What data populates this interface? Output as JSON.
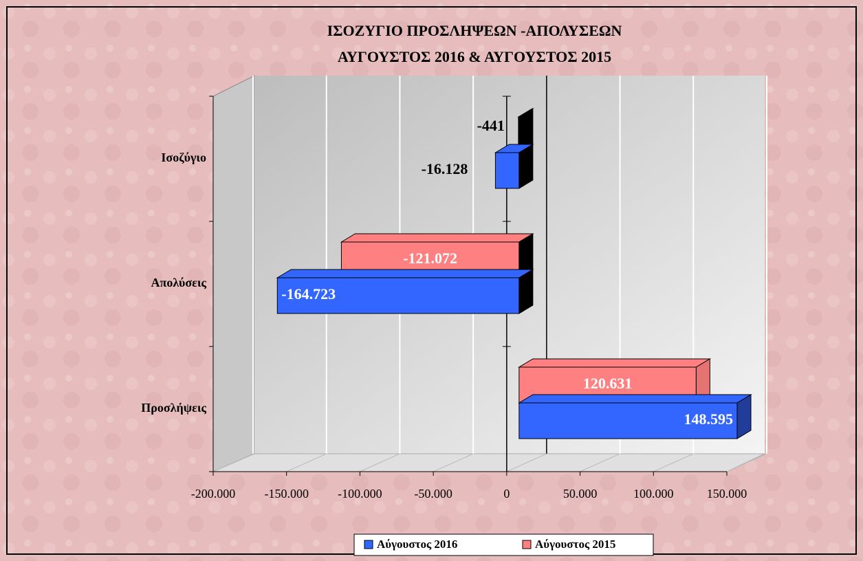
{
  "chart_data": {
    "type": "bar3d_horizontal",
    "title": [
      "ΙΣΟΖΥΓΙΟ ΠΡΟΣΛΗΨΕΩΝ -ΑΠΟΛΥΣΕΩΝ",
      "ΑΥΓΟΥΣΤΟΣ 2016 & ΑΥΓΟΥΣΤΟΣ 2015"
    ],
    "categories": [
      "Ισοζύγιο",
      "Απολύσεις",
      "Προσλήψεις"
    ],
    "series": [
      {
        "name": "Αύγουστος 2016",
        "color": "#3366ff",
        "values": [
          -16128,
          -164723,
          148595
        ],
        "value_labels": [
          "-16.128",
          "-164.723",
          "148.595"
        ]
      },
      {
        "name": "Αύγουστος 2015",
        "color": "#ff8080",
        "values": [
          -441,
          -121072,
          120631
        ],
        "value_labels": [
          "-441",
          "-121.072",
          "120.631"
        ]
      }
    ],
    "xlim": [
      -200000,
      150000
    ],
    "xticks": [
      {
        "value": -200000,
        "label": "-200.000"
      },
      {
        "value": -150000,
        "label": "-150.000"
      },
      {
        "value": -100000,
        "label": "-100.000"
      },
      {
        "value": -50000,
        "label": "-50.000"
      },
      0,
      {
        "value": 50000,
        "label": "50.000"
      },
      {
        "value": 100000,
        "label": "100.000"
      },
      {
        "value": 150000,
        "label": "150.000"
      }
    ],
    "grid": true,
    "legend": "bottom"
  }
}
